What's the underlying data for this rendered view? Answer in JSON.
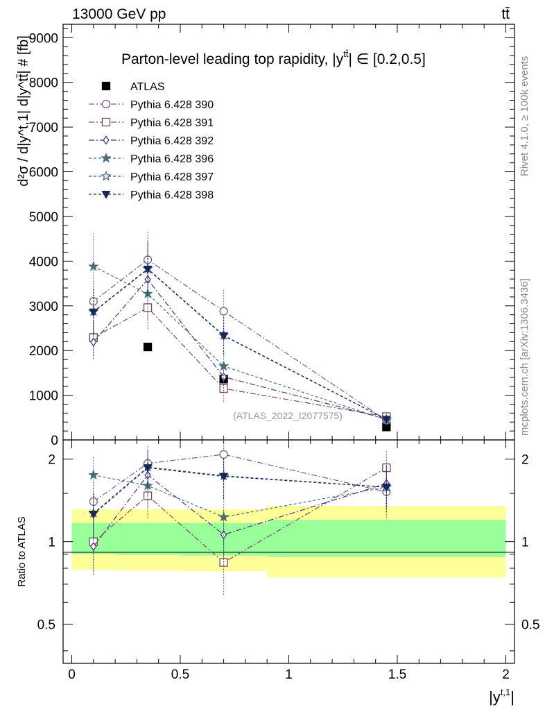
{
  "header": {
    "energy_label": "13000 GeV pp",
    "process_label": "tt̄",
    "plot_title": "Parton-level leading top rapidity, |y",
    "title_sup": "tt̄",
    "title_range": "| ∈ [0.2,0.5]",
    "analysis_id": "(ATLAS_2022_I2077575)",
    "side_rivet": "Rivet 4.1.0, ≥ 100k events",
    "side_mcplots": "mcplots.cern.ch [arXiv:1306.3436]"
  },
  "chart_data": {
    "type": "line",
    "x_values": [
      0.1,
      0.35,
      0.7,
      1.45
    ],
    "xlim": [
      -0.04,
      2.04
    ],
    "x_ticks": [
      0,
      0.5,
      1,
      1.5,
      2
    ],
    "x_tick_labels": [
      "0",
      "0.5",
      "1",
      "1.5",
      "2"
    ],
    "xlabel_main": "|y",
    "xlabel_sup": "t,1",
    "xlabel_end": "|",
    "main": {
      "ylabel": "d²σ / d|y^t,1| d|y^tt̄| # [fb]",
      "ylim": [
        0,
        9300
      ],
      "y_ticks": [
        0,
        1000,
        2000,
        3000,
        4000,
        5000,
        6000,
        7000,
        8000,
        9000
      ],
      "y_tick_labels": [
        "0",
        "1000",
        "2000",
        "3000",
        "4000",
        "5000",
        "6000",
        "7000",
        "8000",
        "9000"
      ],
      "series": [
        {
          "name": "ATLAS",
          "color": "#000000",
          "marker": "square-filled",
          "dash": "",
          "values": [
            2290,
            2080,
            1360,
            290
          ],
          "errors": [
            0,
            0,
            0,
            0
          ]
        },
        {
          "name": "Pythia 6.428 390",
          "color": "#7c5a85",
          "marker": "circle-open",
          "dash": "8,3,2,3",
          "values": [
            3100,
            4030,
            2880,
            440
          ],
          "errors": [
            500,
            650,
            480,
            90
          ]
        },
        {
          "name": "Pythia 6.428 391",
          "color": "#7a4a5a",
          "marker": "square-open",
          "dash": "8,3,2,3",
          "values": [
            2290,
            2960,
            1150,
            520
          ],
          "errors": [
            400,
            480,
            300,
            100
          ]
        },
        {
          "name": "Pythia 6.428 392",
          "color": "#4b2e82",
          "marker": "diamond-open",
          "dash": "8,3,2,3",
          "values": [
            2190,
            3590,
            1410,
            470
          ],
          "errors": [
            380,
            560,
            320,
            95
          ]
        },
        {
          "name": "Pythia 6.428 396",
          "color": "#46707a",
          "marker": "star-filled",
          "dash": "4,3",
          "values": [
            3880,
            3270,
            1650,
            450
          ],
          "errors": [
            780,
            560,
            350,
            90
          ]
        },
        {
          "name": "Pythia 6.428 397",
          "color": "#355a86",
          "marker": "star-open",
          "dash": "4,3",
          "values": [
            2870,
            3830,
            2340,
            460
          ],
          "errors": [
            520,
            600,
            420,
            90
          ]
        },
        {
          "name": "Pythia 6.428 398",
          "color": "#1c2656",
          "marker": "triangle-down-filled",
          "dash": "4,3",
          "values": [
            2860,
            3820,
            2330,
            460
          ],
          "errors": [
            520,
            600,
            420,
            90
          ]
        }
      ]
    },
    "ratio": {
      "ylabel": "Ratio to ATLAS",
      "ylim": [
        0.36,
        2.35
      ],
      "y_ticks": [
        0.5,
        1,
        2
      ],
      "y_tick_labels": [
        "0.5",
        "1",
        "2"
      ],
      "bands": [
        {
          "x0": 0,
          "x1": 0.2,
          "stat_lo": 0.9,
          "stat_hi": 1.17,
          "tot_lo": 0.79,
          "tot_hi": 1.31
        },
        {
          "x0": 0.2,
          "x1": 0.5,
          "stat_lo": 0.895,
          "stat_hi": 1.17,
          "tot_lo": 0.785,
          "tot_hi": 1.31
        },
        {
          "x0": 0.5,
          "x1": 0.9,
          "stat_lo": 0.89,
          "stat_hi": 1.17,
          "tot_lo": 0.78,
          "tot_hi": 1.31
        },
        {
          "x0": 0.9,
          "x1": 2.0,
          "stat_lo": 0.88,
          "stat_hi": 1.2,
          "tot_lo": 0.74,
          "tot_hi": 1.35
        }
      ],
      "series": [
        {
          "name": "Pythia 6.428 390",
          "values": [
            1.4,
            1.93,
            2.08,
            1.52
          ],
          "errors": [
            0.25,
            0.3,
            0.36,
            0.3
          ]
        },
        {
          "name": "Pythia 6.428 391",
          "values": [
            1.0,
            1.47,
            0.84,
            1.86
          ],
          "errors": [
            0.22,
            0.25,
            0.2,
            0.3
          ]
        },
        {
          "name": "Pythia 6.428 392",
          "values": [
            0.96,
            1.75,
            1.06,
            1.63
          ],
          "errors": [
            0.2,
            0.28,
            0.24,
            0.3
          ]
        },
        {
          "name": "Pythia 6.428 396",
          "values": [
            1.75,
            1.6,
            1.23,
            1.58
          ],
          "errors": [
            0.3,
            0.27,
            0.25,
            0.3
          ]
        },
        {
          "name": "Pythia 6.428 397",
          "values": [
            1.27,
            1.87,
            1.74,
            1.58
          ],
          "errors": [
            0.24,
            0.3,
            0.3,
            0.3
          ]
        },
        {
          "name": "Pythia 6.428 398",
          "values": [
            1.26,
            1.86,
            1.73,
            1.58
          ],
          "errors": [
            0.24,
            0.3,
            0.3,
            0.3
          ]
        }
      ]
    }
  }
}
